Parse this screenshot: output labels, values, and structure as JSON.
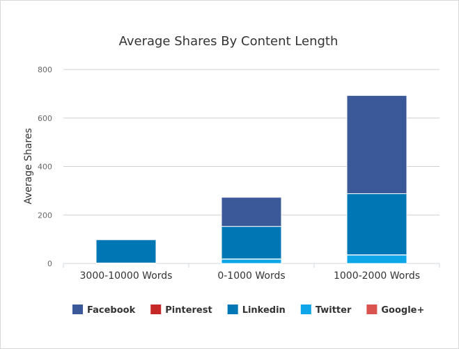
{
  "chart_data": {
    "type": "bar",
    "stacked": true,
    "title": "Average Shares By Content Length",
    "xlabel": "",
    "ylabel": "Average Shares",
    "ylim": [
      0,
      800
    ],
    "yticks": [
      0,
      200,
      400,
      600,
      800
    ],
    "categories": [
      "3000-10000 Words",
      "0-1000 Words",
      "1000-2000 Words"
    ],
    "series": [
      {
        "name": "Twitter",
        "color": "#0ea5e9",
        "values": [
          2,
          18,
          35
        ]
      },
      {
        "name": "Google+",
        "color": "#d9534f",
        "values": [
          0,
          1,
          1
        ]
      },
      {
        "name": "Linkedin",
        "color": "#0077b5",
        "values": [
          96,
          134,
          252
        ]
      },
      {
        "name": "Pinterest",
        "color": "#c62828",
        "values": [
          0,
          0,
          0
        ]
      },
      {
        "name": "Facebook",
        "color": "#3b5998",
        "values": [
          0,
          120,
          405
        ]
      }
    ],
    "legend_order": [
      "Facebook",
      "Pinterest",
      "Linkedin",
      "Twitter",
      "Google+"
    ],
    "legend_position": "bottom",
    "grid": true
  }
}
